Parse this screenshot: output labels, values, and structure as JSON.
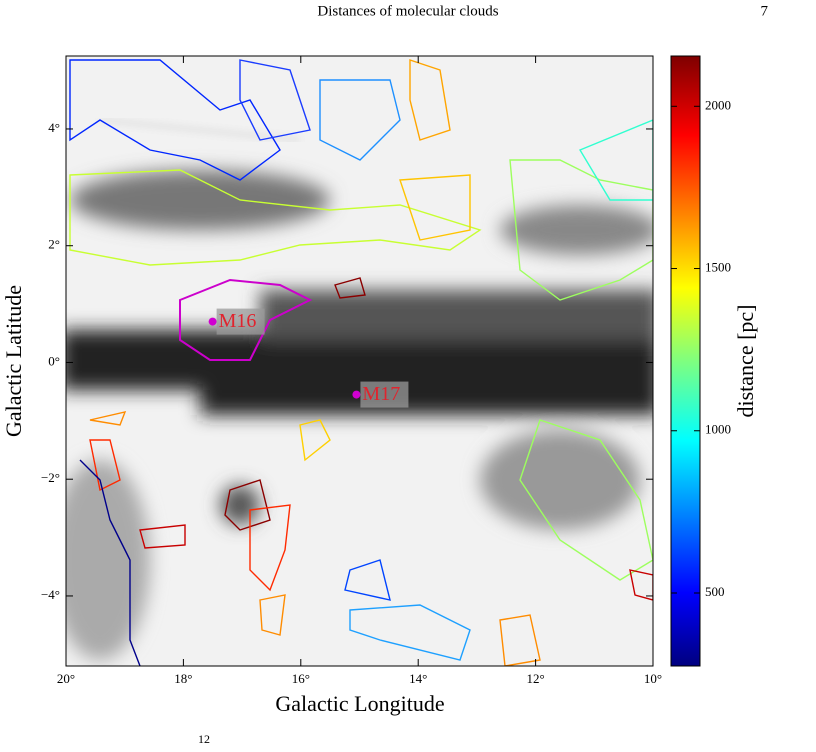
{
  "header": {
    "title": "Distances of molecular clouds",
    "page": "7"
  },
  "figure": {
    "xlabel": "Galactic Longitude",
    "ylabel": "Galactic Latitude",
    "xlim": [
      20,
      10
    ],
    "ylim": [
      -5.2,
      5.25
    ],
    "xticks": [
      {
        "value": 20,
        "label": "20°"
      },
      {
        "value": 18,
        "label": "18°"
      },
      {
        "value": 16,
        "label": "16°"
      },
      {
        "value": 14,
        "label": "14°"
      },
      {
        "value": 12,
        "label": "12°"
      },
      {
        "value": 10,
        "label": "10°"
      }
    ],
    "yticks": [
      {
        "value": 4,
        "label": "4°"
      },
      {
        "value": 2,
        "label": "2°"
      },
      {
        "value": 0,
        "label": "0°"
      },
      {
        "value": -2,
        "label": "−2°"
      },
      {
        "value": -4,
        "label": "−4°"
      }
    ],
    "colorbar": {
      "label": "distance [pc]",
      "clim": [
        275,
        2155
      ],
      "ticks": [
        500,
        1000,
        1500,
        2000
      ]
    },
    "annotations": [
      {
        "text": "M16",
        "l": 17.4,
        "b": 0.7
      },
      {
        "text": "M17",
        "l": 14.95,
        "b": -0.55
      }
    ]
  },
  "footer": {
    "fragment": "12"
  }
}
